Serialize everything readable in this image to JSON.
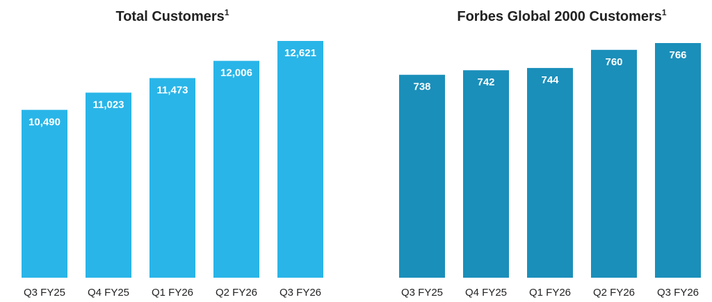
{
  "chart_data": [
    {
      "type": "bar",
      "title": "Total Customers",
      "title_superscript": "1",
      "categories": [
        "Q3 FY25",
        "Q4 FY25",
        "Q1 FY26",
        "Q2 FY26",
        "Q3 FY26"
      ],
      "values": [
        10490,
        11023,
        11473,
        12006,
        12621
      ],
      "value_labels": [
        "10,490",
        "11,023",
        "11,473",
        "12,006",
        "12,621"
      ],
      "xlabel": "",
      "ylabel": "",
      "ylim": [
        5300,
        12621
      ],
      "grid": false,
      "color": "#29b5e8"
    },
    {
      "type": "bar",
      "title": "Forbes Global 2000 Customers",
      "title_superscript": "1",
      "categories": [
        "Q3 FY25",
        "Q4 FY25",
        "Q1 FY26",
        "Q2 FY26",
        "Q3 FY26"
      ],
      "values": [
        738,
        742,
        744,
        760,
        766
      ],
      "value_labels": [
        "738",
        "742",
        "744",
        "760",
        "766"
      ],
      "xlabel": "",
      "ylabel": "",
      "ylim": [
        559,
        766
      ],
      "grid": false,
      "color": "#1a8fba"
    }
  ]
}
